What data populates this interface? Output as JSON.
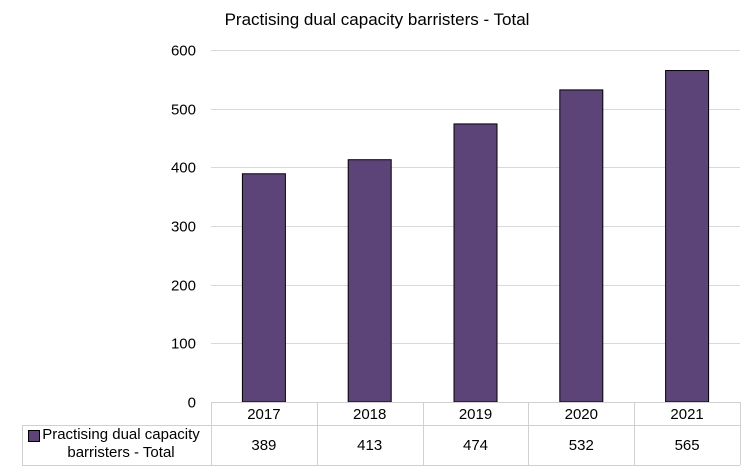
{
  "chart_data": {
    "type": "bar",
    "title": "Practising dual capacity barristers - Total",
    "categories": [
      "2017",
      "2018",
      "2019",
      "2020",
      "2021"
    ],
    "series": [
      {
        "name": "Practising dual capacity barristers - Total",
        "values": [
          389,
          413,
          474,
          532,
          565
        ],
        "color": "#5c4479"
      }
    ],
    "ylim": [
      0,
      600
    ],
    "yticks": [
      0,
      100,
      200,
      300,
      400,
      500,
      600
    ],
    "grid": true,
    "legend": "data-table-left"
  }
}
